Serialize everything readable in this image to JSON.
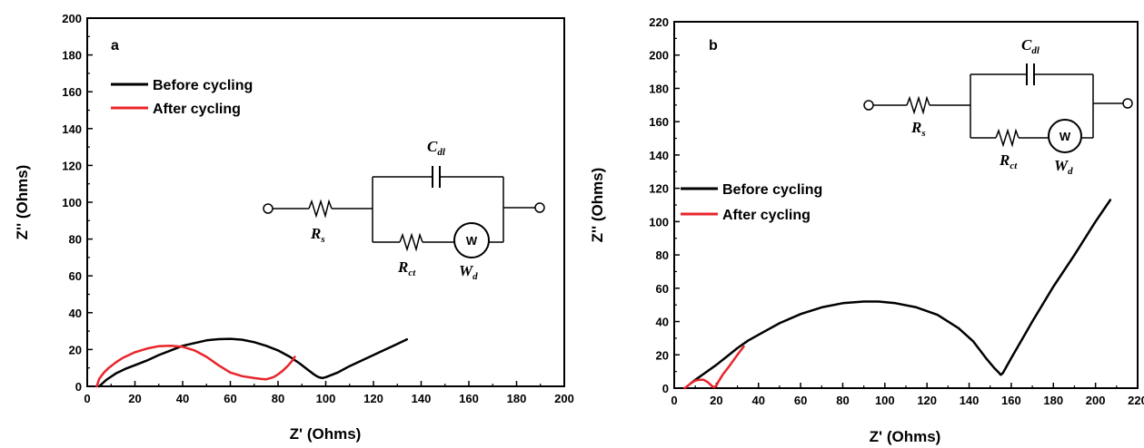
{
  "chart_data": [
    {
      "type": "line",
      "panel_label": "a",
      "xlabel": "Z' (Ohms)",
      "ylabel": "Z'' (Ohms)",
      "xlim": [
        0,
        200
      ],
      "ylim": [
        0,
        200
      ],
      "xticks": [
        0,
        20,
        40,
        60,
        80,
        100,
        120,
        140,
        160,
        180,
        200
      ],
      "yticks": [
        0,
        20,
        40,
        60,
        80,
        100,
        120,
        140,
        160,
        180,
        200
      ],
      "legend_position": "top-left",
      "series": [
        {
          "name": "Before cycling",
          "color": "#000000",
          "x": [
            5,
            8,
            12,
            16,
            20,
            25,
            30,
            35,
            40,
            45,
            50,
            55,
            60,
            65,
            70,
            75,
            80,
            85,
            89,
            92,
            95,
            97,
            98.5,
            100,
            105,
            110,
            115,
            120,
            125,
            130,
            134
          ],
          "y": [
            0,
            3.5,
            7,
            9.5,
            11.5,
            14,
            17,
            19.5,
            22,
            23.5,
            25,
            25.6,
            25.8,
            25.3,
            24,
            22,
            19.5,
            16,
            12.5,
            9.5,
            6.5,
            5,
            4.5,
            5,
            7.5,
            11,
            14,
            17,
            20,
            23,
            25.5
          ]
        },
        {
          "name": "After cycling",
          "color": "#e8252b",
          "x": [
            4,
            5,
            7,
            9,
            12,
            15,
            20,
            25,
            30,
            35,
            40,
            45,
            50,
            55,
            60,
            65,
            70,
            73,
            75,
            78,
            80,
            82,
            84,
            86,
            87
          ],
          "y": [
            0,
            4,
            7.5,
            10,
            13,
            15.5,
            18.5,
            20.5,
            21.8,
            22,
            21.5,
            19.5,
            16,
            11.5,
            7.5,
            5.5,
            4.5,
            4,
            3.8,
            5,
            6.5,
            8.5,
            11,
            14,
            16
          ]
        }
      ],
      "circuit": {
        "rs_label": "R",
        "rs_sub": "s",
        "cdl_label": "C",
        "cdl_sub": "dl",
        "rct_label": "R",
        "rct_sub": "ct",
        "wd_label": "W",
        "wd_sub": "d",
        "warburg_symbol": "W"
      }
    },
    {
      "type": "line",
      "panel_label": "b",
      "xlabel": "Z' (Ohms)",
      "ylabel": "Z'' (Ohms)",
      "xlim": [
        0,
        220
      ],
      "ylim": [
        0,
        220
      ],
      "xticks": [
        0,
        20,
        40,
        60,
        80,
        100,
        120,
        140,
        160,
        180,
        200,
        220
      ],
      "yticks": [
        0,
        20,
        40,
        60,
        80,
        100,
        120,
        140,
        160,
        180,
        200,
        220
      ],
      "legend_position": "middle-left",
      "series": [
        {
          "name": "Before cycling",
          "color": "#000000",
          "x": [
            8,
            10,
            15,
            20,
            25,
            30,
            35,
            40,
            50,
            60,
            70,
            80,
            90,
            97,
            105,
            115,
            125,
            135,
            142,
            148,
            152,
            154,
            155,
            156,
            160,
            165,
            170,
            180,
            190,
            200,
            207
          ],
          "y": [
            3,
            5,
            9.5,
            14,
            19,
            24,
            28.5,
            32,
            39,
            44.5,
            48.5,
            51,
            52,
            52,
            51,
            48.5,
            44,
            36,
            28,
            18,
            12,
            9.5,
            8,
            9,
            18,
            29,
            40,
            61,
            80,
            100,
            113
          ]
        },
        {
          "name": "After cycling",
          "color": "#e8252b",
          "x": [
            5,
            6,
            8,
            10,
            12,
            14,
            16,
            18,
            19,
            20,
            21,
            23,
            26,
            30,
            33
          ],
          "y": [
            0,
            1,
            3,
            4.5,
            5,
            5,
            3.5,
            1.2,
            0.5,
            1.5,
            4,
            8,
            13,
            20,
            25
          ]
        }
      ],
      "circuit": {
        "rs_label": "R",
        "rs_sub": "s",
        "cdl_label": "C",
        "cdl_sub": "dl",
        "rct_label": "R",
        "rct_sub": "ct",
        "wd_label": "W",
        "wd_sub": "d",
        "warburg_symbol": "W"
      }
    }
  ]
}
